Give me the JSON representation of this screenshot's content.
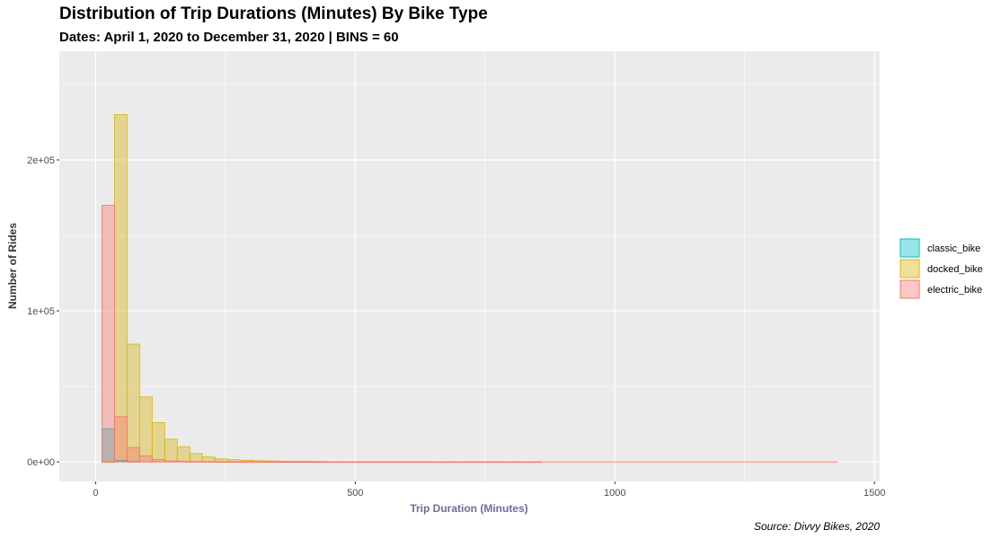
{
  "chart_data": {
    "type": "histogram",
    "title": "Distribution of Trip Durations (Minutes) By Bike Type",
    "subtitle": "Dates: April 1, 2020 to December 31, 2020 | BINS = 60",
    "xlabel": "Trip Duration (Minutes)",
    "ylabel": "Number of Rides",
    "caption": "Source: Divvy Bikes, 2020",
    "xlim": [
      -70,
      1510
    ],
    "ylim": [
      -13000,
      272000
    ],
    "xticks": [
      0,
      500,
      1000,
      1500
    ],
    "xtick_labels": [
      "0",
      "500",
      "1000",
      "1500"
    ],
    "yticks": [
      0,
      100000,
      200000
    ],
    "ytick_labels": [
      "0e+00",
      "1e+05",
      "2e+05"
    ],
    "grid": true,
    "legend_position": "right",
    "bin_width": 24.17,
    "bins_start": 12.1,
    "series": [
      {
        "name": "classic_bike",
        "fill": "#00BFC4",
        "stroke": "#00BFC4",
        "values": [
          22000,
          1000,
          300
        ]
      },
      {
        "name": "docked_bike",
        "fill": "#D8B40A",
        "stroke": "#D8B40A",
        "values": [
          0,
          230000,
          78000,
          43000,
          26000,
          15000,
          10000,
          5500,
          3200,
          2000,
          1500,
          1100,
          800,
          600,
          450,
          350,
          300,
          250
        ]
      },
      {
        "name": "electric_bike",
        "fill": "#F8766D",
        "stroke": "#F8766D",
        "values": [
          170000,
          30000,
          9500,
          4000,
          1500,
          700,
          400,
          250,
          150,
          100,
          80,
          60,
          50,
          40,
          30,
          25,
          20,
          15,
          12,
          10,
          8,
          6,
          5,
          5,
          4,
          4,
          3,
          3,
          3,
          2,
          2,
          2,
          2,
          2,
          1
        ]
      }
    ]
  },
  "legend": {
    "items": [
      {
        "label": "classic_bike",
        "fill": "#00BFC4",
        "stroke": "#00BFC4"
      },
      {
        "label": "docked_bike",
        "fill": "#D8B40A",
        "stroke": "#D8B40A"
      },
      {
        "label": "electric_bike",
        "fill": "#F8766D",
        "stroke": "#F8766D"
      }
    ]
  },
  "colors": {
    "panel_background": "#EBEBEB",
    "grid_major": "#FFFFFF",
    "xlabel_color": "#6B6E9C"
  }
}
